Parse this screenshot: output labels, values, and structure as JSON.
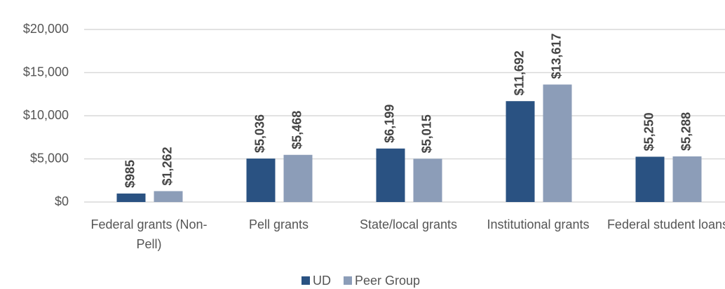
{
  "chart_data": {
    "type": "bar",
    "categories": [
      "Federal grants (Non-Pell)",
      "Pell grants",
      "State/local grants",
      "Institutional grants",
      "Federal student loans"
    ],
    "series": [
      {
        "name": "UD",
        "color": "#2a5282",
        "values": [
          985,
          5036,
          6199,
          11692,
          5250
        ],
        "value_labels": [
          "$985",
          "$5,036",
          "$6,199",
          "$11,692",
          "$5,250"
        ]
      },
      {
        "name": "Peer Group",
        "color": "#8c9db8",
        "values": [
          1262,
          5468,
          5015,
          13617,
          5288
        ],
        "value_labels": [
          "$1,262",
          "$5,468",
          "$5,015",
          "$13,617",
          "$5,288"
        ]
      }
    ],
    "ylim": [
      0,
      20000
    ],
    "yticks": [
      {
        "value": 0,
        "label": "$0"
      },
      {
        "value": 5000,
        "label": "$5,000"
      },
      {
        "value": 10000,
        "label": "$10,000"
      },
      {
        "value": 15000,
        "label": "$15,000"
      },
      {
        "value": 20000,
        "label": "$20,000"
      }
    ],
    "grid": true,
    "legend": "bottom"
  }
}
